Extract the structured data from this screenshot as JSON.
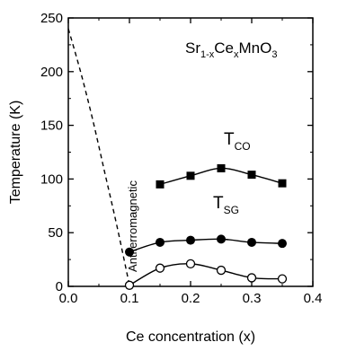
{
  "chart_data": {
    "type": "scatter",
    "title": "",
    "xlabel": "Ce concentration (x)",
    "ylabel": "Temperature (K)",
    "xlim": [
      0.0,
      0.4
    ],
    "ylim": [
      0,
      250
    ],
    "x_ticks": [
      "0.0",
      "0.1",
      "0.2",
      "0.3",
      "0.4"
    ],
    "y_ticks": [
      "0",
      "50",
      "100",
      "150",
      "200",
      "250"
    ],
    "grid": false,
    "annotations": {
      "formula_base": "Sr",
      "formula_sub1": "1-x",
      "formula_mid": "Ce",
      "formula_sub2": "x",
      "formula_end": "MnO",
      "formula_sub3": "3",
      "tco_main": "T",
      "tco_sub": "CO",
      "tsg_main": "T",
      "tsg_sub": "SG",
      "region": "Antiferromagnetic"
    },
    "series": [
      {
        "name": "T_CO",
        "marker": "filled-square",
        "x": [
          0.15,
          0.2,
          0.25,
          0.3,
          0.35
        ],
        "y": [
          95,
          103,
          110,
          104,
          96
        ]
      },
      {
        "name": "T_SG",
        "marker": "filled-circle",
        "x": [
          0.1,
          0.15,
          0.2,
          0.25,
          0.3,
          0.35
        ],
        "y": [
          32,
          41,
          43,
          44,
          41,
          40
        ]
      },
      {
        "marker": "open-circle",
        "x": [
          0.1,
          0.15,
          0.2,
          0.25,
          0.3,
          0.35
        ],
        "y": [
          1,
          17,
          21,
          15,
          8,
          7
        ]
      }
    ],
    "neel_line": {
      "style": "dashed",
      "x": [
        0.0,
        0.02,
        0.04,
        0.06,
        0.08,
        0.1
      ],
      "y": [
        240,
        200,
        155,
        105,
        55,
        1
      ]
    }
  }
}
